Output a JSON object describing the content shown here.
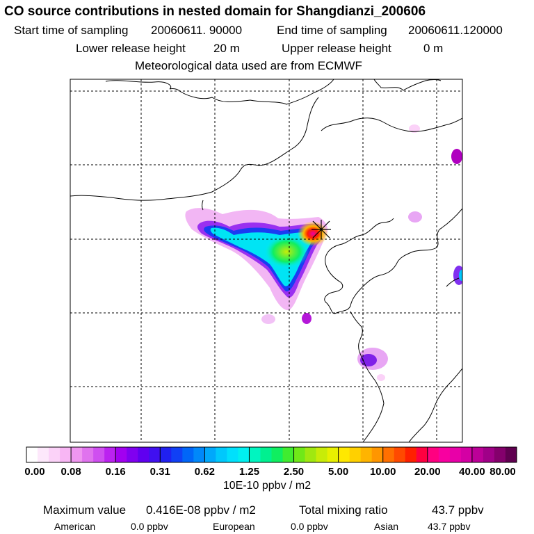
{
  "title": "CO  source contributions in nested domain for Shangdianzi_200606",
  "sampling": {
    "start_label": "Start time of sampling",
    "start_value": "20060611. 90000",
    "end_label": "End time of sampling",
    "end_value": "20060611.120000"
  },
  "release": {
    "lower_label": "Lower release height",
    "lower_value": "20 m",
    "upper_label": "Upper release height",
    "upper_value": "0 m"
  },
  "met_line": "Meteorological data used are from ECMWF",
  "colorbar": {
    "ticks": [
      "0.00",
      "0.08",
      "0.16",
      "0.31",
      "0.62",
      "1.25",
      "2.50",
      "5.00",
      "10.00",
      "20.00",
      "40.00",
      "80.00"
    ],
    "unit": "10E-10 ppbv / m2",
    "colors": [
      "#ffffff",
      "#fde8fb",
      "#fbd2f8",
      "#f8b6f4",
      "#ef96f0",
      "#e073ee",
      "#cf4ff0",
      "#bb22f0",
      "#a200f0",
      "#8000f0",
      "#6000f0",
      "#4010f0",
      "#2020f0",
      "#1040f5",
      "#0066f8",
      "#0088fa",
      "#00a8fb",
      "#00c8fc",
      "#00e0fc",
      "#00f0f0",
      "#00f5c0",
      "#00f090",
      "#10ee60",
      "#40ec30",
      "#70e818",
      "#a0e810",
      "#c8ec08",
      "#e8f000",
      "#ffe800",
      "#ffd000",
      "#ffb400",
      "#ff9600",
      "#ff7000",
      "#ff4a00",
      "#ff2000",
      "#ff0040",
      "#ff0080",
      "#f800a0",
      "#e800a8",
      "#d400a4",
      "#bc0098",
      "#a00088",
      "#84006c",
      "#600050"
    ]
  },
  "summary": {
    "max_label": "Maximum value",
    "max_value": "0.416E-08 ppbv / m2",
    "total_label": "Total mixing ratio",
    "total_value": "43.7 ppbv",
    "american_label": "American",
    "american_value": "0.0 ppbv",
    "european_label": "European",
    "european_value": "0.0 ppbv",
    "asian_label": "Asian",
    "asian_value": "43.7 ppbv"
  },
  "station_marker": "receptor-star-icon"
}
